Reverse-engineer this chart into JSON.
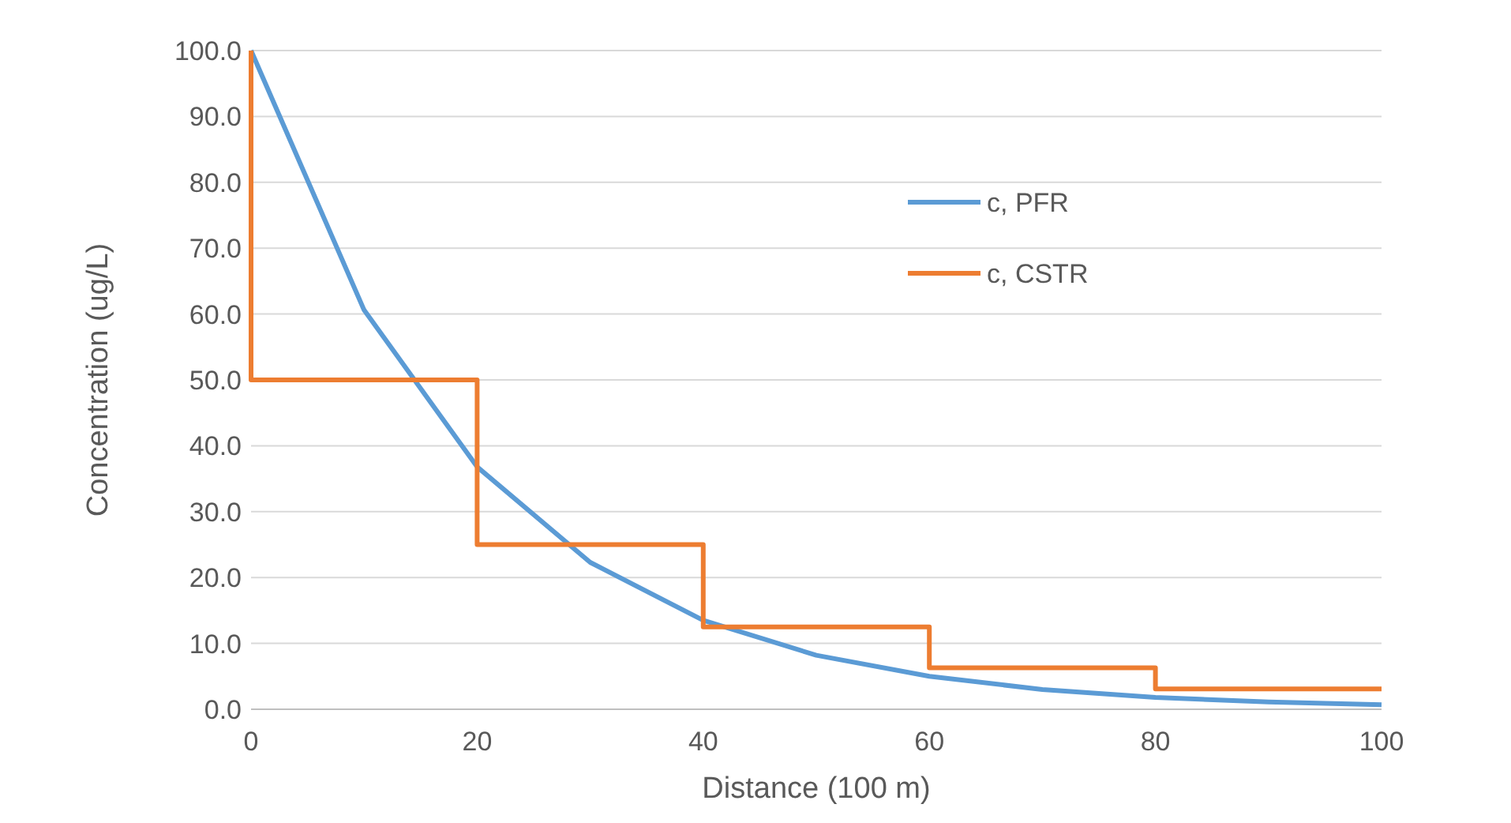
{
  "chart_data": {
    "type": "line",
    "xlabel": "Distance (100 m)",
    "ylabel": "Concentration (ug/L)",
    "xlim": [
      0,
      100
    ],
    "xticks": [
      0,
      20,
      40,
      60,
      80,
      100
    ],
    "ylim": [
      0,
      100
    ],
    "yticks": [
      {
        "value": 0,
        "label": "0.0"
      },
      {
        "value": 10,
        "label": "10.0"
      },
      {
        "value": 20,
        "label": "20.0"
      },
      {
        "value": 30,
        "label": "30.0"
      },
      {
        "value": 40,
        "label": "40.0"
      },
      {
        "value": 50,
        "label": "50.0"
      },
      {
        "value": 60,
        "label": "60.0"
      },
      {
        "value": 70,
        "label": "70.0"
      },
      {
        "value": 80,
        "label": "80.0"
      },
      {
        "value": 90,
        "label": "90.0"
      },
      {
        "value": 100,
        "label": "100.0"
      }
    ],
    "grid": "y",
    "legend": "top right",
    "marker": "none",
    "line_style": "solid",
    "series": [
      {
        "name": "c, PFR",
        "color": "#5b9bd5",
        "x": [
          0,
          10,
          20,
          30,
          40,
          50,
          60,
          70,
          80,
          90,
          100
        ],
        "values": [
          100,
          60.6,
          36.8,
          22.3,
          13.5,
          8.2,
          5.0,
          3.0,
          1.8,
          1.1,
          0.7
        ]
      },
      {
        "name": "c, CSTR",
        "type": "step",
        "color": "#ed7d31",
        "x": [
          0,
          0,
          20,
          40,
          60,
          80,
          100
        ],
        "values": [
          100,
          50,
          25,
          12.5,
          6.3,
          3.1,
          3.1
        ]
      }
    ]
  }
}
